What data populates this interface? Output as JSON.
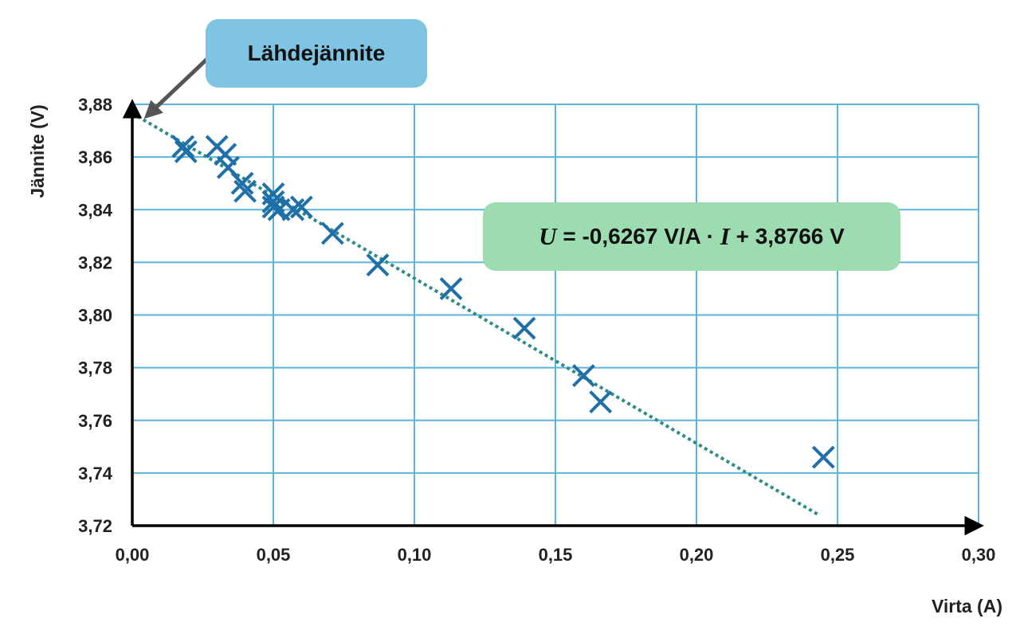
{
  "colors": {
    "grid": "#5bb4d9",
    "axis": "#000000",
    "marker": "#1f6fa8",
    "trendline": "#2e8b88",
    "source_callout_bg": "#7fc4e3",
    "equation_callout_bg": "#9ddbb0",
    "arrow": "#555555"
  },
  "annotations": {
    "source_voltage": "Lähdejännite",
    "equation": {
      "var_u": "U",
      "part1": " = -0,6267 V/A · ",
      "var_i": "I",
      "part2": " + 3,8766 V"
    }
  },
  "chart_data": {
    "type": "scatter",
    "title": "",
    "xlabel": "Virta (A)",
    "ylabel": "Jännite (V)",
    "xlim": [
      0.0,
      0.3
    ],
    "ylim": [
      3.72,
      3.88
    ],
    "x_ticks": [
      0.0,
      0.05,
      0.1,
      0.15,
      0.2,
      0.25,
      0.3
    ],
    "x_tick_labels": [
      "0,00",
      "0,05",
      "0,10",
      "0,15",
      "0,20",
      "0,25",
      "0,30"
    ],
    "y_ticks": [
      3.72,
      3.74,
      3.76,
      3.78,
      3.8,
      3.82,
      3.84,
      3.86,
      3.88
    ],
    "y_tick_labels": [
      "3,72",
      "3,74",
      "3,76",
      "3,78",
      "3,80",
      "3,82",
      "3,84",
      "3,86",
      "3,88"
    ],
    "grid": true,
    "marker": "x",
    "points": [
      {
        "x": 0.018,
        "y": 3.864
      },
      {
        "x": 0.019,
        "y": 3.862
      },
      {
        "x": 0.03,
        "y": 3.864
      },
      {
        "x": 0.033,
        "y": 3.861
      },
      {
        "x": 0.034,
        "y": 3.856
      },
      {
        "x": 0.039,
        "y": 3.85
      },
      {
        "x": 0.04,
        "y": 3.847
      },
      {
        "x": 0.05,
        "y": 3.846
      },
      {
        "x": 0.05,
        "y": 3.843
      },
      {
        "x": 0.05,
        "y": 3.841
      },
      {
        "x": 0.052,
        "y": 3.84
      },
      {
        "x": 0.057,
        "y": 3.84
      },
      {
        "x": 0.06,
        "y": 3.841
      },
      {
        "x": 0.071,
        "y": 3.831
      },
      {
        "x": 0.087,
        "y": 3.819
      },
      {
        "x": 0.113,
        "y": 3.81
      },
      {
        "x": 0.139,
        "y": 3.795
      },
      {
        "x": 0.16,
        "y": 3.777
      },
      {
        "x": 0.166,
        "y": 3.767
      },
      {
        "x": 0.245,
        "y": 3.746
      }
    ],
    "trendline": {
      "slope": -0.6267,
      "intercept": 3.8766,
      "x_range": [
        0.0,
        0.243
      ],
      "style": "dotted"
    }
  }
}
